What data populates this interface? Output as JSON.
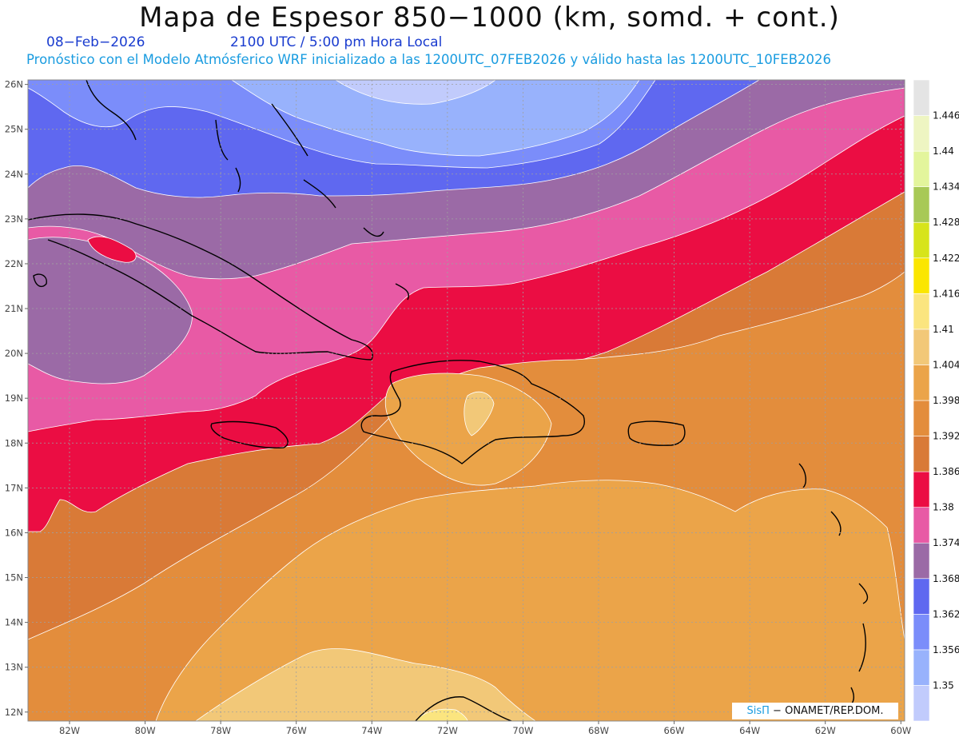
{
  "header": {
    "title": "Mapa de Espesor 850−1000 (km, somd. + cont.)",
    "date": "08−Feb−2026",
    "time": "2100 UTC / 5:00 pm Hora Local",
    "description": "Pronóstico con el Modelo Atmósferico WRF inicializado a las 1200UTC_07FEB2026 y válido hasta las  1200UTC_10FEB2026"
  },
  "map": {
    "lon_range": [
      -83.1,
      -59.9
    ],
    "lat_range": [
      11.8,
      26.1
    ],
    "lat_ticks": [
      "12N",
      "13N",
      "14N",
      "15N",
      "16N",
      "17N",
      "18N",
      "19N",
      "20N",
      "21N",
      "22N",
      "23N",
      "24N",
      "25N",
      "26N"
    ],
    "lon_ticks": [
      "82W",
      "80W",
      "78W",
      "76W",
      "74W",
      "72W",
      "70W",
      "68W",
      "66W",
      "64W",
      "62W",
      "60W"
    ],
    "grid": true
  },
  "colorbar": {
    "labels": [
      "1.35",
      "1.356",
      "1.362",
      "1.368",
      "1.374",
      "1.38",
      "1.386",
      "1.392",
      "1.398",
      "1.404",
      "1.41",
      "1.416",
      "1.422",
      "1.428",
      "1.434",
      "1.44",
      "1.446"
    ],
    "colors": [
      "#c1cbfc",
      "#98b2fc",
      "#7b8dfa",
      "#5f68f0",
      "#9b6aa6",
      "#e85aa5",
      "#eb0d43",
      "#d97a37",
      "#e38d3c",
      "#eba449",
      "#f2c878",
      "#fbe57f",
      "#fbe600",
      "#d7e41b",
      "#a8c956",
      "#e3f59c",
      "#eef5c2",
      "#e4e4e4"
    ]
  },
  "credit": {
    "brand": "SisΠ",
    "text": " ONAMET/REP.DOM."
  }
}
